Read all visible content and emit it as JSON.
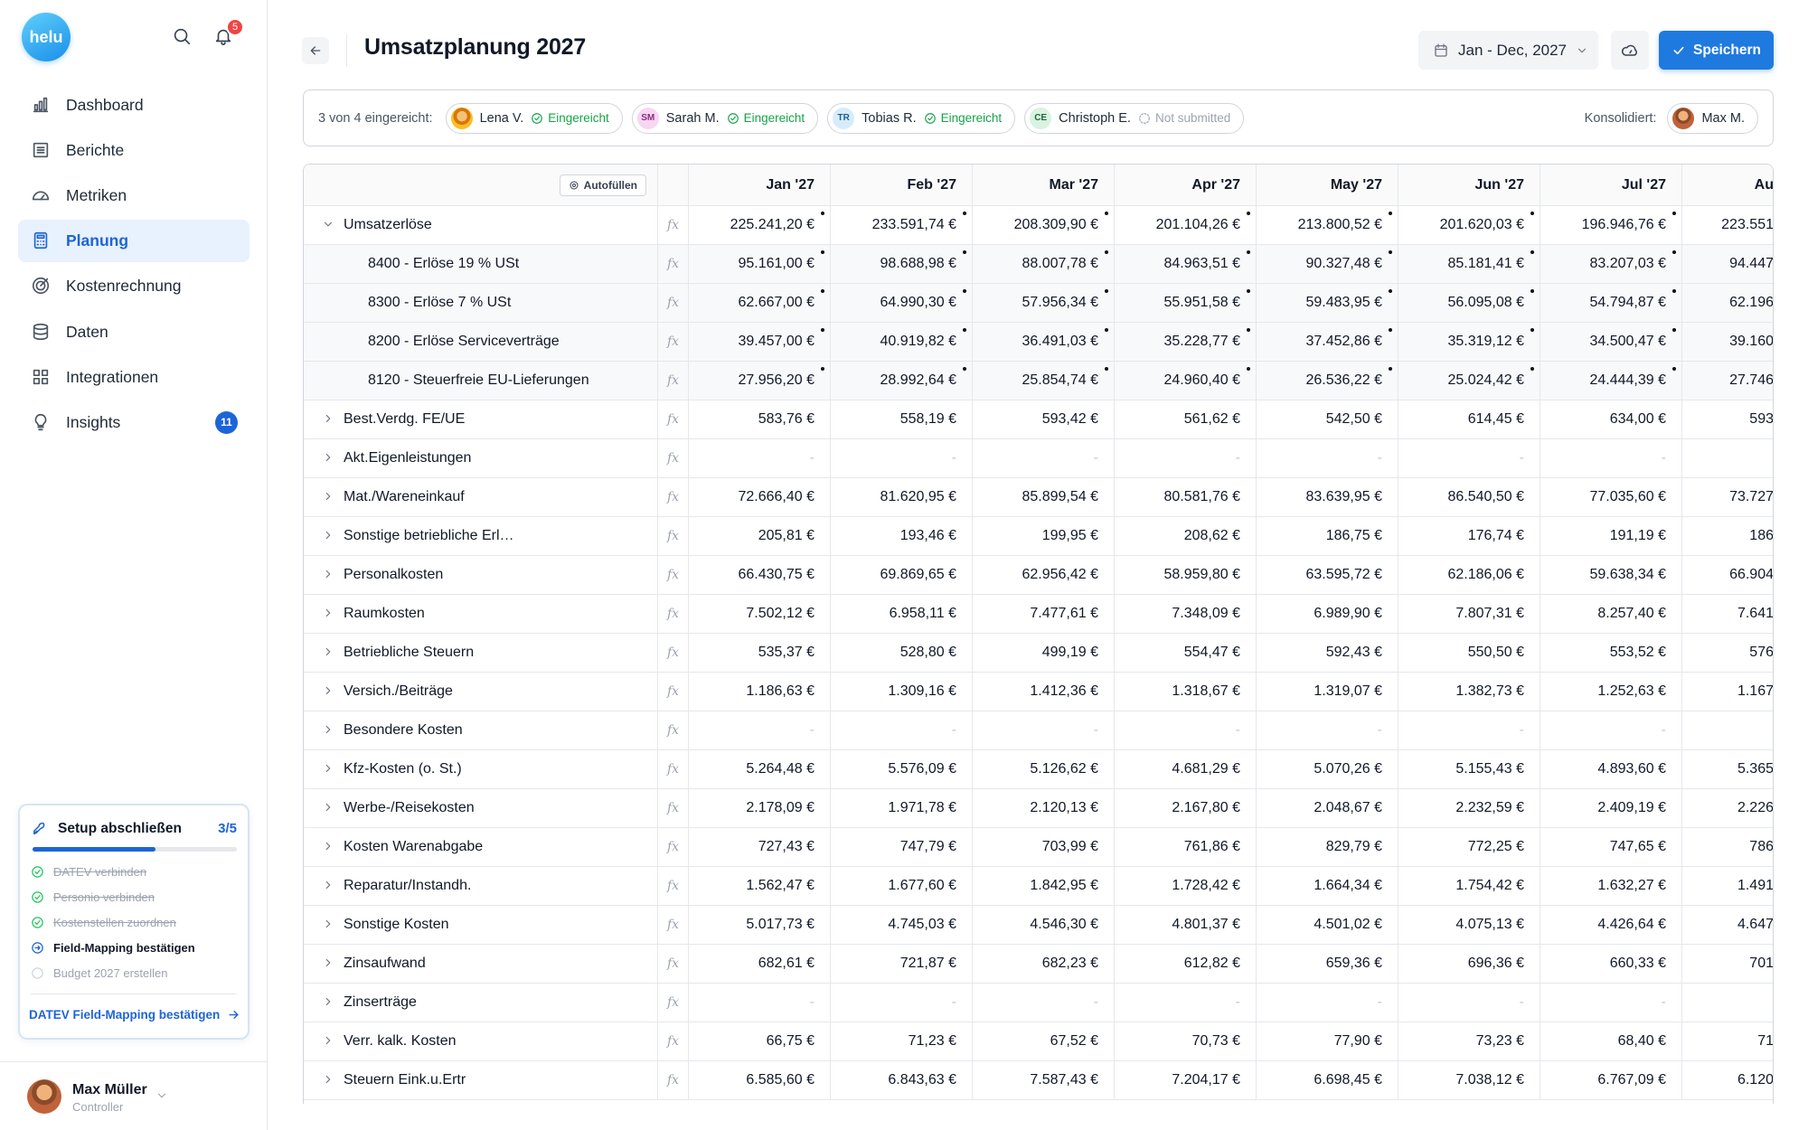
{
  "sidebar": {
    "logo": "helu",
    "notification_count": "5",
    "nav": [
      {
        "label": "Dashboard"
      },
      {
        "label": "Berichte"
      },
      {
        "label": "Metriken"
      },
      {
        "label": "Planung",
        "active": true
      },
      {
        "label": "Kostenrechnung"
      },
      {
        "label": "Daten"
      },
      {
        "label": "Integrationen"
      },
      {
        "label": "Insights",
        "badge": "11"
      }
    ]
  },
  "setup": {
    "title": "Setup abschließen",
    "progress": "3/5",
    "steps": [
      {
        "label": "DATEV verbinden",
        "status": "done"
      },
      {
        "label": "Personio verbinden",
        "status": "done"
      },
      {
        "label": "Kostenstellen zuordnen",
        "status": "done"
      },
      {
        "label": "Field-Mapping bestätigen",
        "status": "current"
      },
      {
        "label": "Budget 2027 erstellen",
        "status": "todo"
      }
    ],
    "link": "DATEV Field-Mapping bestätigen"
  },
  "user": {
    "name": "Max Müller",
    "role": "Controller"
  },
  "header": {
    "title": "Umsatzplanung 2027",
    "date_range": "Jan - Dec, 2027",
    "save": "Speichern"
  },
  "submissions": {
    "summary": "3 von 4 eingereicht:",
    "people": [
      {
        "name": "Lena V.",
        "status": "Eingereicht",
        "submitted": true
      },
      {
        "initials": "SM",
        "name": "Sarah M.",
        "status": "Eingereicht",
        "submitted": true
      },
      {
        "initials": "TR",
        "name": "Tobias R.",
        "status": "Eingereicht",
        "submitted": true
      },
      {
        "initials": "CE",
        "name": "Christoph E.",
        "status": "Not submitted",
        "submitted": false
      }
    ],
    "consolidated_label": "Konsolidiert:",
    "consolidated_by": "Max M."
  },
  "table": {
    "autofill": "Autofüllen",
    "fx": "fx",
    "columns": [
      "Jan '27",
      "Feb '27",
      "Mar '27",
      "Apr '27",
      "May '27",
      "Jun '27",
      "Jul '27",
      "Au"
    ],
    "rows": [
      {
        "label": "Umsatzerlöse",
        "level": 0,
        "expanded": true,
        "marked": true,
        "values": [
          "225.241,20 €",
          "233.591,74 €",
          "208.309,90 €",
          "201.104,26 €",
          "213.800,52 €",
          "201.620,03 €",
          "196.946,76 €",
          "223.551"
        ]
      },
      {
        "label": "8400 - Erlöse 19 % USt",
        "level": 1,
        "marked": true,
        "values": [
          "95.161,00 €",
          "98.688,98 €",
          "88.007,78 €",
          "84.963,51 €",
          "90.327,48 €",
          "85.181,41 €",
          "83.207,03 €",
          "94.447"
        ]
      },
      {
        "label": "8300 - Erlöse 7 % USt",
        "level": 1,
        "marked": true,
        "values": [
          "62.667,00 €",
          "64.990,30 €",
          "57.956,34 €",
          "55.951,58 €",
          "59.483,95 €",
          "56.095,08 €",
          "54.794,87 €",
          "62.196"
        ]
      },
      {
        "label": "8200 - Erlöse Serviceverträge",
        "level": 1,
        "marked": true,
        "values": [
          "39.457,00 €",
          "40.919,82 €",
          "36.491,03 €",
          "35.228,77 €",
          "37.452,86 €",
          "35.319,12 €",
          "34.500,47 €",
          "39.160"
        ]
      },
      {
        "label": "8120 - Steuerfreie EU-Lieferungen",
        "level": 1,
        "marked": true,
        "values": [
          "27.956,20 €",
          "28.992,64 €",
          "25.854,74 €",
          "24.960,40 €",
          "26.536,22 €",
          "25.024,42 €",
          "24.444,39 €",
          "27.746"
        ]
      },
      {
        "label": "Best.Verdg. FE/UE",
        "level": 0,
        "values": [
          "583,76 €",
          "558,19 €",
          "593,42 €",
          "561,62 €",
          "542,50 €",
          "614,45 €",
          "634,00 €",
          "593"
        ]
      },
      {
        "label": "Akt.Eigenleistungen",
        "level": 0,
        "values": [
          "-",
          "-",
          "-",
          "-",
          "-",
          "-",
          "-",
          null
        ]
      },
      {
        "label": "Mat./Wareneinkauf",
        "level": 0,
        "values": [
          "72.666,40 €",
          "81.620,95 €",
          "85.899,54 €",
          "80.581,76 €",
          "83.639,95 €",
          "86.540,50 €",
          "77.035,60 €",
          "73.727"
        ]
      },
      {
        "label": "Sonstige betriebliche Erl…",
        "level": 0,
        "values": [
          "205,81 €",
          "193,46 €",
          "199,95 €",
          "208,62 €",
          "186,75 €",
          "176,74 €",
          "191,19 €",
          "186"
        ]
      },
      {
        "label": "Personalkosten",
        "level": 0,
        "values": [
          "66.430,75 €",
          "69.869,65 €",
          "62.956,42 €",
          "58.959,80 €",
          "63.595,72 €",
          "62.186,06 €",
          "59.638,34 €",
          "66.904"
        ]
      },
      {
        "label": "Raumkosten",
        "level": 0,
        "values": [
          "7.502,12 €",
          "6.958,11 €",
          "7.477,61 €",
          "7.348,09 €",
          "6.989,90 €",
          "7.807,31 €",
          "8.257,40 €",
          "7.641"
        ]
      },
      {
        "label": "Betriebliche Steuern",
        "level": 0,
        "values": [
          "535,37 €",
          "528,80 €",
          "499,19 €",
          "554,47 €",
          "592,43 €",
          "550,50 €",
          "553,52 €",
          "576"
        ]
      },
      {
        "label": "Versich./Beiträge",
        "level": 0,
        "values": [
          "1.186,63 €",
          "1.309,16 €",
          "1.412,36 €",
          "1.318,67 €",
          "1.319,07 €",
          "1.382,73 €",
          "1.252,63 €",
          "1.167"
        ]
      },
      {
        "label": "Besondere Kosten",
        "level": 0,
        "values": [
          "-",
          "-",
          "-",
          "-",
          "-",
          "-",
          "-",
          null
        ]
      },
      {
        "label": "Kfz-Kosten (o. St.)",
        "level": 0,
        "values": [
          "5.264,48 €",
          "5.576,09 €",
          "5.126,62 €",
          "4.681,29 €",
          "5.070,26 €",
          "5.155,43 €",
          "4.893,60 €",
          "5.365"
        ]
      },
      {
        "label": "Werbe-/Reisekosten",
        "level": 0,
        "values": [
          "2.178,09 €",
          "1.971,78 €",
          "2.120,13 €",
          "2.167,80 €",
          "2.048,67 €",
          "2.232,59 €",
          "2.409,19 €",
          "2.226"
        ]
      },
      {
        "label": "Kosten Warenabgabe",
        "level": 0,
        "values": [
          "727,43 €",
          "747,79 €",
          "703,99 €",
          "761,86 €",
          "829,79 €",
          "772,25 €",
          "747,65 €",
          "786"
        ]
      },
      {
        "label": "Reparatur/Instandh.",
        "level": 0,
        "values": [
          "1.562,47 €",
          "1.677,60 €",
          "1.842,95 €",
          "1.728,42 €",
          "1.664,34 €",
          "1.754,42 €",
          "1.632,27 €",
          "1.491"
        ]
      },
      {
        "label": "Sonstige Kosten",
        "level": 0,
        "values": [
          "5.017,73 €",
          "4.745,03 €",
          "4.546,30 €",
          "4.801,37 €",
          "4.501,02 €",
          "4.075,13 €",
          "4.426,64 €",
          "4.647"
        ]
      },
      {
        "label": "Zinsaufwand",
        "level": 0,
        "values": [
          "682,61 €",
          "721,87 €",
          "682,23 €",
          "612,82 €",
          "659,36 €",
          "696,36 €",
          "660,33 €",
          "701"
        ]
      },
      {
        "label": "Zinserträge",
        "level": 0,
        "values": [
          "-",
          "-",
          "-",
          "-",
          "-",
          "-",
          "-",
          null
        ]
      },
      {
        "label": "Verr. kalk. Kosten",
        "level": 0,
        "values": [
          "66,75 €",
          "71,23 €",
          "67,52 €",
          "70,73 €",
          "77,90 €",
          "73,23 €",
          "68,40 €",
          "71"
        ]
      },
      {
        "label": "Steuern Eink.u.Ertr",
        "level": 0,
        "values": [
          "6.585,60 €",
          "6.843,63 €",
          "7.587,43 €",
          "7.204,17 €",
          "6.698,45 €",
          "7.038,12 €",
          "6.767,09 €",
          "6.120"
        ]
      }
    ]
  }
}
